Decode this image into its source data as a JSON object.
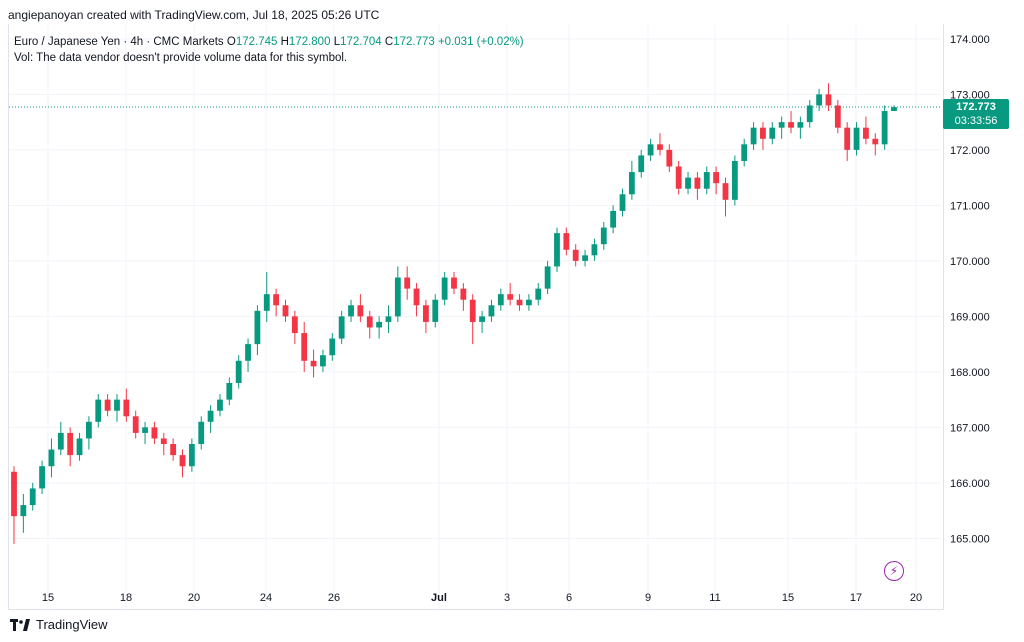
{
  "header": {
    "created_by": "angiepanoyan created with TradingView.com, Jul 18, 2025 05:26 UTC"
  },
  "legend": {
    "symbol": "Euro / Japanese Yen · 4h · CMC Markets",
    "o_label": "O",
    "o_value": "172.745",
    "h_label": "H",
    "h_value": "172.800",
    "l_label": "L",
    "l_value": "172.704",
    "c_label": "C",
    "c_value": "172.773",
    "change": "+0.031 (+0.02%)",
    "vol_note": "Vol: The data vendor doesn't provide volume data for this symbol."
  },
  "price_tag": {
    "price": "172.773",
    "countdown": "03:33:56"
  },
  "footer": {
    "brand": "TradingView"
  },
  "colors": {
    "up": "#089981",
    "down": "#f23645",
    "grid": "#f0f3fa",
    "last_line": "#089981",
    "flash": "#9c27b0"
  },
  "icons": [
    "tradingview-logo-icon",
    "flash-icon"
  ],
  "chart_data": {
    "type": "candlestick",
    "symbol": "EURJPY",
    "timeframe": "4h",
    "ylim": [
      164.25,
      174.25
    ],
    "y_ticks": [
      "165.000",
      "166.000",
      "167.000",
      "168.000",
      "169.000",
      "170.000",
      "171.000",
      "172.000",
      "173.000",
      "174.000"
    ],
    "x_ticks": [
      "15",
      "18",
      "20",
      "24",
      "26",
      "Jul",
      "3",
      "6",
      "9",
      "11",
      "15",
      "17",
      "20"
    ],
    "last_price": 172.773,
    "grid": true,
    "candles_ohlc_approx": [
      [
        166.2,
        166.3,
        164.9,
        165.4
      ],
      [
        165.4,
        165.8,
        165.1,
        165.6
      ],
      [
        165.6,
        166.0,
        165.5,
        165.9
      ],
      [
        165.9,
        166.4,
        165.8,
        166.3
      ],
      [
        166.3,
        166.8,
        166.1,
        166.6
      ],
      [
        166.6,
        167.1,
        166.5,
        166.9
      ],
      [
        166.9,
        167.0,
        166.3,
        166.5
      ],
      [
        166.5,
        166.9,
        166.4,
        166.8
      ],
      [
        166.8,
        167.2,
        166.6,
        167.1
      ],
      [
        167.1,
        167.6,
        167.0,
        167.5
      ],
      [
        167.5,
        167.6,
        167.2,
        167.3
      ],
      [
        167.3,
        167.6,
        167.1,
        167.5
      ],
      [
        167.5,
        167.7,
        167.1,
        167.2
      ],
      [
        167.2,
        167.3,
        166.8,
        166.9
      ],
      [
        166.9,
        167.1,
        166.7,
        167.0
      ],
      [
        167.0,
        167.1,
        166.7,
        166.8
      ],
      [
        166.8,
        166.9,
        166.5,
        166.7
      ],
      [
        166.7,
        166.8,
        166.4,
        166.5
      ],
      [
        166.5,
        166.6,
        166.1,
        166.3
      ],
      [
        166.3,
        166.8,
        166.2,
        166.7
      ],
      [
        166.7,
        167.2,
        166.6,
        167.1
      ],
      [
        167.1,
        167.4,
        166.9,
        167.3
      ],
      [
        167.3,
        167.6,
        167.2,
        167.5
      ],
      [
        167.5,
        167.9,
        167.4,
        167.8
      ],
      [
        167.8,
        168.3,
        167.7,
        168.2
      ],
      [
        168.2,
        168.6,
        168.0,
        168.5
      ],
      [
        168.5,
        169.2,
        168.3,
        169.1
      ],
      [
        169.1,
        169.8,
        168.9,
        169.4
      ],
      [
        169.4,
        169.5,
        169.0,
        169.2
      ],
      [
        169.2,
        169.3,
        168.9,
        169.0
      ],
      [
        169.0,
        169.1,
        168.5,
        168.7
      ],
      [
        168.7,
        168.9,
        168.0,
        168.2
      ],
      [
        168.2,
        168.4,
        167.9,
        168.1
      ],
      [
        168.1,
        168.4,
        168.0,
        168.3
      ],
      [
        168.3,
        168.7,
        168.2,
        168.6
      ],
      [
        168.6,
        169.1,
        168.5,
        169.0
      ],
      [
        169.0,
        169.3,
        168.9,
        169.2
      ],
      [
        169.2,
        169.4,
        168.9,
        169.0
      ],
      [
        169.0,
        169.1,
        168.6,
        168.8
      ],
      [
        168.8,
        169.0,
        168.6,
        168.9
      ],
      [
        168.9,
        169.2,
        168.7,
        169.0
      ],
      [
        169.0,
        169.9,
        168.9,
        169.7
      ],
      [
        169.7,
        169.9,
        169.3,
        169.5
      ],
      [
        169.5,
        169.6,
        169.0,
        169.2
      ],
      [
        169.2,
        169.3,
        168.7,
        168.9
      ],
      [
        168.9,
        169.4,
        168.8,
        169.3
      ],
      [
        169.3,
        169.8,
        169.2,
        169.7
      ],
      [
        169.7,
        169.8,
        169.4,
        169.5
      ],
      [
        169.5,
        169.6,
        169.1,
        169.3
      ],
      [
        169.3,
        169.4,
        168.5,
        168.9
      ],
      [
        168.9,
        169.1,
        168.7,
        169.0
      ],
      [
        169.0,
        169.3,
        168.9,
        169.2
      ],
      [
        169.2,
        169.5,
        169.1,
        169.4
      ],
      [
        169.4,
        169.6,
        169.2,
        169.3
      ],
      [
        169.3,
        169.4,
        169.1,
        169.2
      ],
      [
        169.2,
        169.4,
        169.1,
        169.3
      ],
      [
        169.3,
        169.6,
        169.2,
        169.5
      ],
      [
        169.5,
        170.0,
        169.4,
        169.9
      ],
      [
        169.9,
        170.6,
        169.8,
        170.5
      ],
      [
        170.5,
        170.6,
        170.1,
        170.2
      ],
      [
        170.2,
        170.3,
        169.9,
        170.0
      ],
      [
        170.0,
        170.2,
        169.9,
        170.1
      ],
      [
        170.1,
        170.4,
        170.0,
        170.3
      ],
      [
        170.3,
        170.7,
        170.2,
        170.6
      ],
      [
        170.6,
        171.0,
        170.5,
        170.9
      ],
      [
        170.9,
        171.3,
        170.8,
        171.2
      ],
      [
        171.2,
        171.8,
        171.1,
        171.6
      ],
      [
        171.6,
        172.0,
        171.5,
        171.9
      ],
      [
        171.9,
        172.2,
        171.8,
        172.1
      ],
      [
        172.1,
        172.3,
        171.9,
        172.0
      ],
      [
        172.0,
        172.1,
        171.6,
        171.7
      ],
      [
        171.7,
        171.8,
        171.2,
        171.3
      ],
      [
        171.3,
        171.6,
        171.2,
        171.5
      ],
      [
        171.5,
        171.6,
        171.1,
        171.3
      ],
      [
        171.3,
        171.7,
        171.2,
        171.6
      ],
      [
        171.6,
        171.7,
        171.2,
        171.4
      ],
      [
        171.4,
        171.5,
        170.8,
        171.1
      ],
      [
        171.1,
        171.9,
        171.0,
        171.8
      ],
      [
        171.8,
        172.2,
        171.7,
        172.1
      ],
      [
        172.1,
        172.5,
        172.0,
        172.4
      ],
      [
        172.4,
        172.5,
        172.0,
        172.2
      ],
      [
        172.2,
        172.5,
        172.1,
        172.4
      ],
      [
        172.4,
        172.6,
        172.2,
        172.5
      ],
      [
        172.5,
        172.7,
        172.3,
        172.4
      ],
      [
        172.4,
        172.6,
        172.2,
        172.5
      ],
      [
        172.5,
        172.9,
        172.4,
        172.8
      ],
      [
        172.8,
        173.1,
        172.7,
        173.0
      ],
      [
        173.0,
        173.2,
        172.7,
        172.8
      ],
      [
        172.8,
        172.9,
        172.3,
        172.4
      ],
      [
        172.4,
        172.5,
        171.8,
        172.0
      ],
      [
        172.0,
        172.5,
        171.9,
        172.4
      ],
      [
        172.4,
        172.6,
        172.1,
        172.2
      ],
      [
        172.2,
        172.3,
        171.9,
        172.1
      ],
      [
        172.1,
        172.8,
        172.0,
        172.7
      ],
      [
        172.7,
        172.8,
        172.7,
        172.77
      ]
    ]
  }
}
